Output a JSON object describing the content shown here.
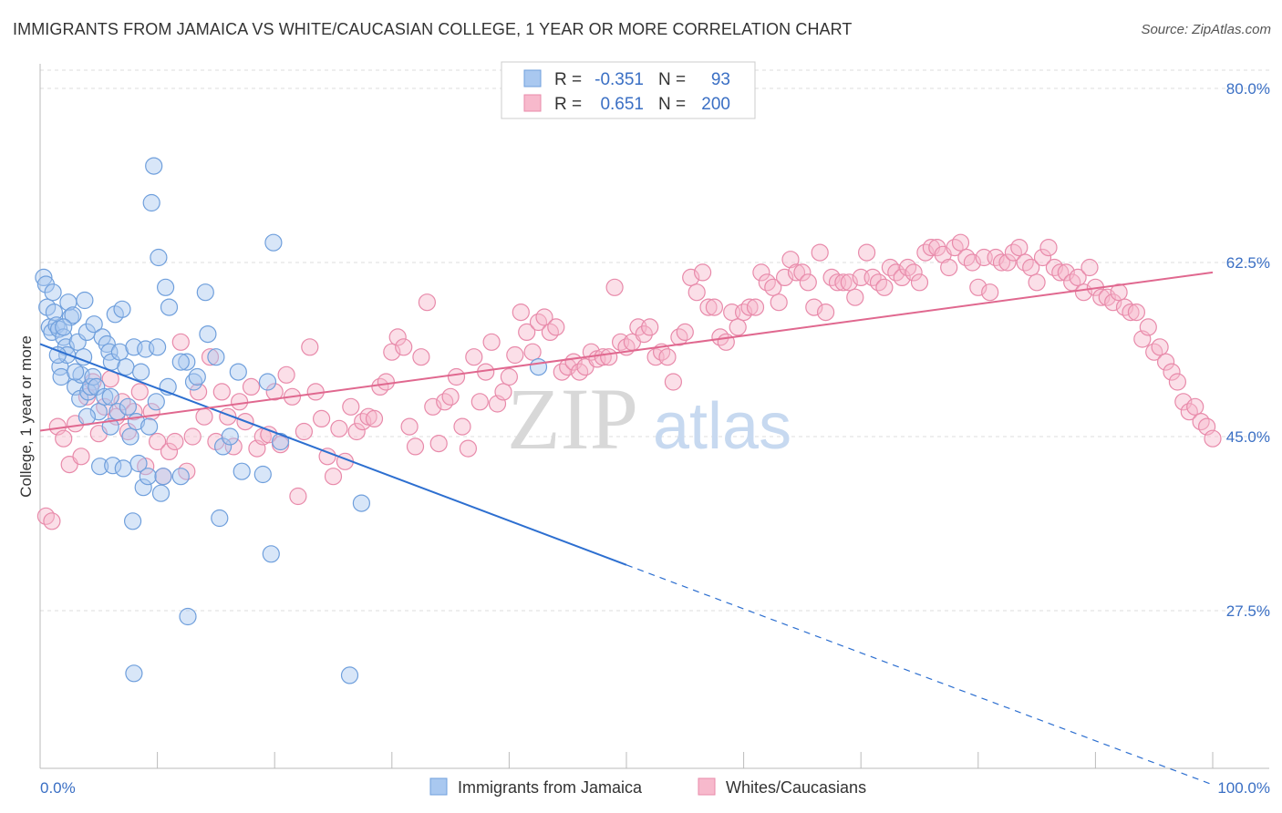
{
  "header": {
    "title": "IMMIGRANTS FROM JAMAICA VS WHITE/CAUCASIAN COLLEGE, 1 YEAR OR MORE CORRELATION CHART",
    "source": "Source: ZipAtlas.com"
  },
  "watermark": {
    "zip": "ZIP",
    "atlas": "atlas"
  },
  "legend": {
    "rows": [
      {
        "r_label": "R =",
        "r_value": "-0.351",
        "n_label": "N =",
        "n_value": "93",
        "color": "#a9c8f0",
        "stroke": "#6f9fdc"
      },
      {
        "r_label": "R =",
        "r_value": "0.651",
        "n_label": "N =",
        "n_value": "200",
        "color": "#f7b9cc",
        "stroke": "#e88aaa"
      }
    ]
  },
  "bottom_legend": [
    {
      "label": "Immigrants from Jamaica",
      "color": "#a9c8f0",
      "stroke": "#6f9fdc"
    },
    {
      "label": "Whites/Caucasians",
      "color": "#f7b9cc",
      "stroke": "#e88aaa"
    }
  ],
  "chart_data": {
    "type": "scatter",
    "title": "IMMIGRANTS FROM JAMAICA VS WHITE/CAUCASIAN COLLEGE, 1 YEAR OR MORE CORRELATION CHART",
    "xlabel": "",
    "ylabel": "College, 1 year or more",
    "xlim": [
      0,
      100
    ],
    "ylim": [
      10,
      85
    ],
    "x_tick_labels": [
      "0.0%",
      "100.0%"
    ],
    "y_ticks": [
      27.5,
      45.0,
      62.5,
      80.0
    ],
    "y_tick_labels": [
      "27.5%",
      "45.0%",
      "62.5%",
      "80.0%"
    ],
    "grid": true,
    "legend_position": "top-center",
    "series": [
      {
        "name": "Immigrants from Jamaica",
        "color": "#a9c8f0",
        "stroke": "#6f9fdc",
        "trend": {
          "x": [
            0,
            50
          ],
          "y": [
            54.3,
            32.1
          ],
          "dashed_to": [
            100,
            10.0
          ],
          "color": "#2d6fd0"
        },
        "points": [
          [
            0.3,
            61.0
          ],
          [
            0.5,
            60.3
          ],
          [
            0.6,
            58.0
          ],
          [
            0.8,
            56.0
          ],
          [
            1.0,
            55.5
          ],
          [
            1.1,
            59.5
          ],
          [
            1.2,
            57.5
          ],
          [
            1.4,
            56.2
          ],
          [
            1.6,
            55.8
          ],
          [
            1.7,
            52.0
          ],
          [
            1.8,
            51.0
          ],
          [
            2.0,
            55.0
          ],
          [
            2.2,
            54.0
          ],
          [
            2.3,
            53.2
          ],
          [
            2.4,
            58.5
          ],
          [
            2.6,
            57.0
          ],
          [
            2.8,
            57.2
          ],
          [
            3.0,
            50.0
          ],
          [
            3.2,
            54.5
          ],
          [
            3.4,
            48.8
          ],
          [
            3.5,
            51.2
          ],
          [
            3.7,
            53.0
          ],
          [
            3.8,
            58.7
          ],
          [
            4.0,
            55.5
          ],
          [
            4.1,
            49.5
          ],
          [
            4.3,
            50.0
          ],
          [
            4.5,
            51.0
          ],
          [
            4.6,
            56.3
          ],
          [
            4.8,
            50.0
          ],
          [
            5.0,
            47.5
          ],
          [
            5.1,
            42.0
          ],
          [
            5.3,
            55.0
          ],
          [
            5.5,
            49.0
          ],
          [
            5.7,
            54.3
          ],
          [
            5.9,
            53.5
          ],
          [
            6.0,
            46.0
          ],
          [
            6.1,
            52.5
          ],
          [
            6.2,
            42.1
          ],
          [
            6.4,
            57.3
          ],
          [
            6.6,
            47.5
          ],
          [
            6.8,
            53.5
          ],
          [
            7.0,
            57.8
          ],
          [
            7.1,
            41.8
          ],
          [
            7.3,
            52.0
          ],
          [
            7.5,
            48.0
          ],
          [
            7.7,
            45.0
          ],
          [
            7.9,
            36.5
          ],
          [
            8.0,
            54.0
          ],
          [
            8.2,
            46.5
          ],
          [
            8.4,
            42.3
          ],
          [
            8.6,
            51.5
          ],
          [
            8.8,
            39.9
          ],
          [
            9.0,
            53.8
          ],
          [
            9.2,
            41.0
          ],
          [
            9.3,
            46.0
          ],
          [
            9.5,
            68.5
          ],
          [
            9.7,
            72.2
          ],
          [
            9.9,
            48.5
          ],
          [
            10.0,
            54.0
          ],
          [
            10.1,
            63.0
          ],
          [
            10.3,
            39.3
          ],
          [
            10.5,
            41.0
          ],
          [
            10.7,
            60.0
          ],
          [
            10.9,
            50.0
          ],
          [
            11.0,
            58.0
          ],
          [
            12.0,
            41.0
          ],
          [
            12.6,
            26.9
          ],
          [
            13.1,
            50.5
          ],
          [
            12.5,
            52.5
          ],
          [
            13.4,
            51.0
          ],
          [
            14.1,
            59.5
          ],
          [
            14.3,
            55.3
          ],
          [
            15.0,
            53.0
          ],
          [
            15.3,
            36.8
          ],
          [
            15.6,
            44.0
          ],
          [
            16.2,
            45.0
          ],
          [
            16.9,
            51.5
          ],
          [
            17.2,
            41.5
          ],
          [
            19.0,
            41.2
          ],
          [
            19.4,
            50.5
          ],
          [
            19.7,
            33.2
          ],
          [
            19.9,
            64.5
          ],
          [
            20.5,
            44.5
          ],
          [
            26.4,
            21.0
          ],
          [
            27.4,
            38.3
          ],
          [
            42.5,
            52.0
          ],
          [
            8.0,
            21.2
          ],
          [
            12.0,
            52.5
          ],
          [
            4.0,
            47.0
          ],
          [
            6.0,
            49.0
          ],
          [
            3.0,
            51.5
          ],
          [
            2.0,
            56.0
          ],
          [
            1.5,
            53.2
          ]
        ]
      },
      {
        "name": "Whites/Caucasians",
        "color": "#f7b9cc",
        "stroke": "#e88aaa",
        "trend": {
          "x": [
            0,
            100
          ],
          "y": [
            45.6,
            61.5
          ],
          "color": "#e0688f"
        },
        "points": [
          [
            0.5,
            37.0
          ],
          [
            1.0,
            36.5
          ],
          [
            1.5,
            46.0
          ],
          [
            2.0,
            44.8
          ],
          [
            2.5,
            42.2
          ],
          [
            3.0,
            46.3
          ],
          [
            3.5,
            43.0
          ],
          [
            4.0,
            49.0
          ],
          [
            4.5,
            50.5
          ],
          [
            5.0,
            45.3
          ],
          [
            5.5,
            48.0
          ],
          [
            6.0,
            50.8
          ],
          [
            6.5,
            47.0
          ],
          [
            7.0,
            48.5
          ],
          [
            7.5,
            45.5
          ],
          [
            8.0,
            47.5
          ],
          [
            8.5,
            49.5
          ],
          [
            9.0,
            42.0
          ],
          [
            9.5,
            47.5
          ],
          [
            10.0,
            44.5
          ],
          [
            10.5,
            41.0
          ],
          [
            11.0,
            43.5
          ],
          [
            11.5,
            44.5
          ],
          [
            12.0,
            54.5
          ],
          [
            12.5,
            41.5
          ],
          [
            13.0,
            45.0
          ],
          [
            13.5,
            49.5
          ],
          [
            14.0,
            47.0
          ],
          [
            14.5,
            53.0
          ],
          [
            15.0,
            44.5
          ],
          [
            15.5,
            49.5
          ],
          [
            16.0,
            47.0
          ],
          [
            16.5,
            44.0
          ],
          [
            17.0,
            48.5
          ],
          [
            17.5,
            46.5
          ],
          [
            18.0,
            50.0
          ],
          [
            18.5,
            43.8
          ],
          [
            19.0,
            45.0
          ],
          [
            19.5,
            45.2
          ],
          [
            20.0,
            49.5
          ],
          [
            20.5,
            44.2
          ],
          [
            21.0,
            51.2
          ],
          [
            21.5,
            49.0
          ],
          [
            22.0,
            39.0
          ],
          [
            22.5,
            45.5
          ],
          [
            23.0,
            54.0
          ],
          [
            23.5,
            49.5
          ],
          [
            24.0,
            46.8
          ],
          [
            24.5,
            43.0
          ],
          [
            25.0,
            41.0
          ],
          [
            25.5,
            45.8
          ],
          [
            26.0,
            42.5
          ],
          [
            26.5,
            48.0
          ],
          [
            27.0,
            45.5
          ],
          [
            27.5,
            46.5
          ],
          [
            28.0,
            47.0
          ],
          [
            28.5,
            46.8
          ],
          [
            29.0,
            50.0
          ],
          [
            29.5,
            50.5
          ],
          [
            30.0,
            53.5
          ],
          [
            30.5,
            55.0
          ],
          [
            31.0,
            54.0
          ],
          [
            31.5,
            46.0
          ],
          [
            32.0,
            44.0
          ],
          [
            32.5,
            53.0
          ],
          [
            33.0,
            58.5
          ],
          [
            33.5,
            48.0
          ],
          [
            34.0,
            44.3
          ],
          [
            34.5,
            48.5
          ],
          [
            35.0,
            49.0
          ],
          [
            35.5,
            51.0
          ],
          [
            36.0,
            46.0
          ],
          [
            36.5,
            43.8
          ],
          [
            37.0,
            53.0
          ],
          [
            37.5,
            48.5
          ],
          [
            38.0,
            51.5
          ],
          [
            38.5,
            54.5
          ],
          [
            39.0,
            48.3
          ],
          [
            39.5,
            49.5
          ],
          [
            40.0,
            51.0
          ],
          [
            40.5,
            53.2
          ],
          [
            41.0,
            57.5
          ],
          [
            41.5,
            55.5
          ],
          [
            42.0,
            53.5
          ],
          [
            42.5,
            56.5
          ],
          [
            43.0,
            57.0
          ],
          [
            43.5,
            55.5
          ],
          [
            44.0,
            56.0
          ],
          [
            44.5,
            51.5
          ],
          [
            45.0,
            52.0
          ],
          [
            45.5,
            52.5
          ],
          [
            46.0,
            51.5
          ],
          [
            46.5,
            52.0
          ],
          [
            47.0,
            53.5
          ],
          [
            47.5,
            52.8
          ],
          [
            48.0,
            53.0
          ],
          [
            48.5,
            53.0
          ],
          [
            49.0,
            60.0
          ],
          [
            49.5,
            54.5
          ],
          [
            50.0,
            54.0
          ],
          [
            50.5,
            54.5
          ],
          [
            51.0,
            56.0
          ],
          [
            51.5,
            55.3
          ],
          [
            52.0,
            56.0
          ],
          [
            52.5,
            53.0
          ],
          [
            53.0,
            53.5
          ],
          [
            53.5,
            53.0
          ],
          [
            54.0,
            50.5
          ],
          [
            54.5,
            55.0
          ],
          [
            55.0,
            55.5
          ],
          [
            55.5,
            61.0
          ],
          [
            56.0,
            59.5
          ],
          [
            56.5,
            61.5
          ],
          [
            57.0,
            58.0
          ],
          [
            57.5,
            58.0
          ],
          [
            58.0,
            55.0
          ],
          [
            58.5,
            54.5
          ],
          [
            59.0,
            57.5
          ],
          [
            59.5,
            56.0
          ],
          [
            60.0,
            57.5
          ],
          [
            60.5,
            58.0
          ],
          [
            61.0,
            58.0
          ],
          [
            61.5,
            61.5
          ],
          [
            62.0,
            60.5
          ],
          [
            62.5,
            60.0
          ],
          [
            63.0,
            58.5
          ],
          [
            63.5,
            61.0
          ],
          [
            64.0,
            62.8
          ],
          [
            64.5,
            61.5
          ],
          [
            65.0,
            61.5
          ],
          [
            65.5,
            60.5
          ],
          [
            66.0,
            58.0
          ],
          [
            66.5,
            63.5
          ],
          [
            67.0,
            57.5
          ],
          [
            67.5,
            61.0
          ],
          [
            68.0,
            60.5
          ],
          [
            68.5,
            60.5
          ],
          [
            69.0,
            60.5
          ],
          [
            69.5,
            59.0
          ],
          [
            70.0,
            61.0
          ],
          [
            70.5,
            63.5
          ],
          [
            71.0,
            61.0
          ],
          [
            71.5,
            60.5
          ],
          [
            72.0,
            60.0
          ],
          [
            72.5,
            62.0
          ],
          [
            73.0,
            61.5
          ],
          [
            73.5,
            61.0
          ],
          [
            74.0,
            62.0
          ],
          [
            74.5,
            61.5
          ],
          [
            75.0,
            60.5
          ],
          [
            75.5,
            63.5
          ],
          [
            76.0,
            64.0
          ],
          [
            76.5,
            64.0
          ],
          [
            77.0,
            63.3
          ],
          [
            77.5,
            62.0
          ],
          [
            78.0,
            64.0
          ],
          [
            78.5,
            64.5
          ],
          [
            79.0,
            63.0
          ],
          [
            79.5,
            62.5
          ],
          [
            80.0,
            60.0
          ],
          [
            80.5,
            63.0
          ],
          [
            81.0,
            59.5
          ],
          [
            81.5,
            63.0
          ],
          [
            82.0,
            62.5
          ],
          [
            82.5,
            62.5
          ],
          [
            83.0,
            63.5
          ],
          [
            83.5,
            64.0
          ],
          [
            84.0,
            62.5
          ],
          [
            84.5,
            62.0
          ],
          [
            85.0,
            60.5
          ],
          [
            85.5,
            63.0
          ],
          [
            86.0,
            64.0
          ],
          [
            86.5,
            62.0
          ],
          [
            87.0,
            61.5
          ],
          [
            87.5,
            61.5
          ],
          [
            88.0,
            60.5
          ],
          [
            88.5,
            61.0
          ],
          [
            89.0,
            59.5
          ],
          [
            89.5,
            62.0
          ],
          [
            90.0,
            60.0
          ],
          [
            90.5,
            59.0
          ],
          [
            91.0,
            59.0
          ],
          [
            91.5,
            58.5
          ],
          [
            92.0,
            59.5
          ],
          [
            92.5,
            58.0
          ],
          [
            93.0,
            57.5
          ],
          [
            93.5,
            57.5
          ],
          [
            94.0,
            54.8
          ],
          [
            94.5,
            56.0
          ],
          [
            95.0,
            53.5
          ],
          [
            95.5,
            54.0
          ],
          [
            96.0,
            52.5
          ],
          [
            96.5,
            51.5
          ],
          [
            97.0,
            50.5
          ],
          [
            97.5,
            48.5
          ],
          [
            98.0,
            47.5
          ],
          [
            98.5,
            48.0
          ],
          [
            99.0,
            46.5
          ],
          [
            99.5,
            46.0
          ],
          [
            100.0,
            44.8
          ]
        ]
      }
    ]
  }
}
